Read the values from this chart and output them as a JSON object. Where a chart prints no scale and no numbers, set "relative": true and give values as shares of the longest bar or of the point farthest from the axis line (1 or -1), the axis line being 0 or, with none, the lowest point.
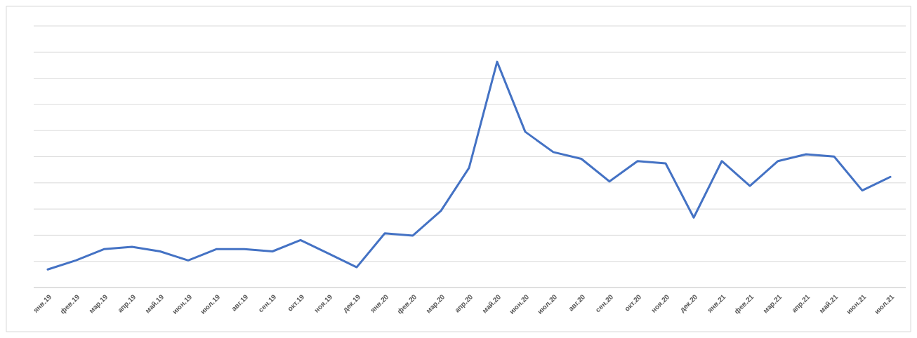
{
  "chart_data": {
    "type": "line",
    "relative": true,
    "grid": true,
    "color": "#4472c4",
    "categories": [
      "янв.19",
      "фев.19",
      "мар.19",
      "апр.19",
      "май.19",
      "июн.19",
      "июл.19",
      "авг.19",
      "сен.19",
      "окт.19",
      "ноя.19",
      "дек.19",
      "янв.20",
      "фев.20",
      "мар.20",
      "апр.20",
      "май.20",
      "июн.20",
      "июл.20",
      "авг.20",
      "сен.20",
      "окт.20",
      "ноя.20",
      "дек.20",
      "янв.21",
      "фев.21",
      "мар.21",
      "апр.21",
      "май.21",
      "июн.21",
      "июл.21"
    ],
    "values": [
      0.08,
      0.12,
      0.17,
      0.18,
      0.16,
      0.12,
      0.17,
      0.17,
      0.16,
      0.21,
      0.15,
      0.09,
      0.24,
      0.23,
      0.34,
      0.53,
      1,
      0.69,
      0.6,
      0.57,
      0.47,
      0.56,
      0.55,
      0.31,
      0.56,
      0.45,
      0.56,
      0.59,
      0.58,
      0.43,
      0.49
    ]
  }
}
